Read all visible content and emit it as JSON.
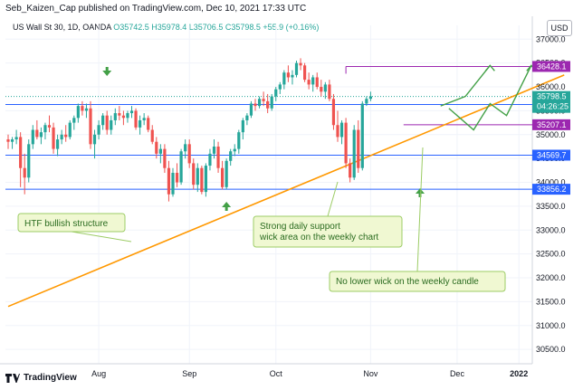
{
  "header": {
    "publish_text": "Seb_Kaizen_Cap published on TradingView.com, Dec 10, 2021 17:33 UTC"
  },
  "legend": {
    "symbol": "US Wall St 30, 1D, OANDA",
    "ohlc": "O35742.5 H35978.4 L35706.5 C35798.5",
    "change": "+55.9 (+0.16%)"
  },
  "currency_label": "USD",
  "footer": {
    "brand": "TradingView"
  },
  "colors": {
    "up": "#26a69a",
    "down": "#ef5350",
    "trendline": "#ff9800",
    "purple": "#9c27b0",
    "blue": "#2962ff",
    "note_bg": "#f0f8d2",
    "note_border": "#9ccc65",
    "arrow": "#43a047"
  },
  "chart_data": {
    "type": "candlestick",
    "title": "US Wall St 30, 1D, OANDA",
    "y_unit": "USD",
    "ylim": [
      30200,
      37100
    ],
    "y_ticks": [
      30500,
      31000,
      31500,
      32000,
      32500,
      33000,
      33500,
      34000,
      34500,
      35000,
      35500,
      36000,
      36500,
      37000
    ],
    "x_ticks": [
      {
        "label": "Aug",
        "index": 22
      },
      {
        "label": "Sep",
        "index": 44
      },
      {
        "label": "Oct",
        "index": 65
      },
      {
        "label": "Nov",
        "index": 88
      },
      {
        "label": "Dec",
        "index": 109
      },
      {
        "label": "2022",
        "index": 124
      }
    ],
    "candles": [
      [
        34900,
        35000,
        34700,
        34850
      ],
      [
        34850,
        34950,
        34700,
        34900
      ],
      [
        34900,
        35100,
        34800,
        34950
      ],
      [
        34950,
        35050,
        33900,
        34300
      ],
      [
        34300,
        34600,
        33750,
        34100
      ],
      [
        34100,
        34900,
        34000,
        34800
      ],
      [
        34800,
        35200,
        34700,
        35100
      ],
      [
        35100,
        35300,
        34900,
        34950
      ],
      [
        34950,
        35150,
        34800,
        35050
      ],
      [
        35050,
        35250,
        34900,
        35200
      ],
      [
        35200,
        35400,
        35050,
        35150
      ],
      [
        35150,
        35250,
        34600,
        34700
      ],
      [
        34700,
        35000,
        34550,
        34900
      ],
      [
        34900,
        35100,
        34800,
        35000
      ],
      [
        35000,
        35200,
        34850,
        34950
      ],
      [
        34950,
        35300,
        34900,
        35250
      ],
      [
        35250,
        35400,
        35100,
        35350
      ],
      [
        35350,
        35650,
        35250,
        35600
      ],
      [
        35600,
        35700,
        35400,
        35500
      ],
      [
        35500,
        35650,
        35350,
        35550
      ],
      [
        35550,
        35700,
        34700,
        34800
      ],
      [
        34800,
        35100,
        34500,
        35000
      ],
      [
        35000,
        35300,
        34900,
        35200
      ],
      [
        35200,
        35450,
        35100,
        35400
      ],
      [
        35400,
        35500,
        35000,
        35100
      ],
      [
        35100,
        35400,
        35000,
        35300
      ],
      [
        35300,
        35550,
        35200,
        35450
      ],
      [
        35450,
        35600,
        35300,
        35400
      ],
      [
        35400,
        35500,
        35200,
        35350
      ],
      [
        35350,
        35500,
        35250,
        35450
      ],
      [
        35450,
        35600,
        35350,
        35500
      ],
      [
        35500,
        35550,
        35100,
        35150
      ],
      [
        35150,
        35400,
        35000,
        35300
      ],
      [
        35300,
        35450,
        35200,
        35350
      ],
      [
        35350,
        35400,
        35050,
        35100
      ],
      [
        35100,
        35200,
        34800,
        34850
      ],
      [
        34850,
        34950,
        34500,
        34600
      ],
      [
        34600,
        34800,
        34400,
        34700
      ],
      [
        34700,
        34800,
        34200,
        34300
      ],
      [
        34300,
        34450,
        33600,
        33750
      ],
      [
        33750,
        34300,
        33700,
        34200
      ],
      [
        34200,
        34400,
        33900,
        34000
      ],
      [
        34000,
        34700,
        33950,
        34650
      ],
      [
        34650,
        34900,
        34500,
        34800
      ],
      [
        34800,
        34900,
        34300,
        34400
      ],
      [
        34400,
        34500,
        33850,
        33950
      ],
      [
        33950,
        34400,
        33800,
        34300
      ],
      [
        34300,
        34350,
        33750,
        33800
      ],
      [
        33800,
        34400,
        33700,
        34350
      ],
      [
        34350,
        34700,
        34250,
        34600
      ],
      [
        34600,
        34900,
        34500,
        34750
      ],
      [
        34750,
        34850,
        34200,
        34300
      ],
      [
        34300,
        34450,
        33850,
        33900
      ],
      [
        33900,
        34500,
        33850,
        34450
      ],
      [
        34450,
        34700,
        34350,
        34650
      ],
      [
        34650,
        34800,
        34550,
        34700
      ],
      [
        34700,
        35100,
        34600,
        35050
      ],
      [
        35050,
        35350,
        34900,
        35300
      ],
      [
        35300,
        35450,
        35200,
        35400
      ],
      [
        35400,
        35700,
        35350,
        35650
      ],
      [
        35650,
        35750,
        35500,
        35600
      ],
      [
        35600,
        35800,
        35550,
        35750
      ],
      [
        35750,
        35900,
        35600,
        35700
      ],
      [
        35700,
        35850,
        35450,
        35550
      ],
      [
        35550,
        35850,
        35500,
        35800
      ],
      [
        35800,
        36000,
        35700,
        35950
      ],
      [
        35950,
        36100,
        35850,
        36050
      ],
      [
        36050,
        36350,
        35950,
        36300
      ],
      [
        36300,
        36450,
        36100,
        36200
      ],
      [
        36200,
        36350,
        36050,
        36250
      ],
      [
        36250,
        36550,
        36200,
        36500
      ],
      [
        36500,
        36600,
        36350,
        36450
      ],
      [
        36450,
        36500,
        36100,
        36150
      ],
      [
        36150,
        36300,
        35950,
        36050
      ],
      [
        36050,
        36250,
        35900,
        36200
      ],
      [
        36200,
        36300,
        35950,
        36000
      ],
      [
        36000,
        36150,
        35800,
        35900
      ],
      [
        35900,
        36100,
        35750,
        36050
      ],
      [
        36050,
        36150,
        35700,
        35750
      ],
      [
        35750,
        35850,
        35100,
        35200
      ],
      [
        35200,
        35500,
        34850,
        34950
      ],
      [
        34950,
        35300,
        34800,
        35250
      ],
      [
        35250,
        35350,
        34300,
        34400
      ],
      [
        34400,
        34500,
        34000,
        34100
      ],
      [
        34100,
        35200,
        34050,
        35100
      ],
      [
        35100,
        35300,
        34200,
        34300
      ],
      [
        34300,
        35700,
        34250,
        35650
      ],
      [
        35650,
        35800,
        35600,
        35750
      ],
      [
        35750,
        35900,
        35700,
        35800
      ]
    ],
    "horizontal_levels": [
      {
        "value": 36428.1,
        "label": "36428.1",
        "color": "#9c27b0"
      },
      {
        "value": 35631.7,
        "label": "35631.7",
        "color": "#2962ff"
      },
      {
        "value": 35207.1,
        "label": "35207.1",
        "color": "#9c27b0"
      },
      {
        "value": 34569.7,
        "label": "34569.7",
        "color": "#2962ff"
      },
      {
        "value": 33856.2,
        "label": "33856.2",
        "color": "#2962ff"
      }
    ],
    "last_price": {
      "value": 35798.5,
      "label": "35798.5",
      "countdown": "04:26:25"
    },
    "trendline": {
      "from": {
        "index": 0,
        "value": 31400
      },
      "to": {
        "index": 135,
        "value": 36250
      }
    },
    "annotations": [
      {
        "id": "htf",
        "text": [
          "HTF bullish structure"
        ]
      },
      {
        "id": "support",
        "text": [
          "Strong daily support",
          "wick area on the weekly chart"
        ]
      },
      {
        "id": "wick",
        "text": [
          "No lower wick on the weekly candle"
        ]
      }
    ]
  }
}
